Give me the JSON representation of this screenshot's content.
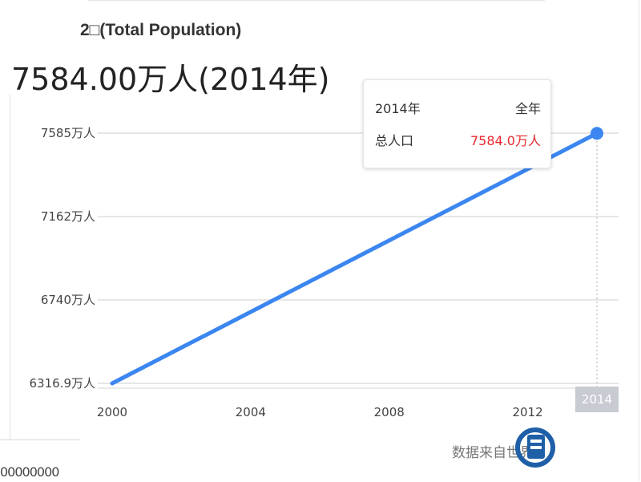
{
  "header": {
    "title": "2□(Total Population)",
    "headline": "7584.00万人(2014年)"
  },
  "tooltip": {
    "year": "2014年",
    "period": "全年",
    "metric": "总人口",
    "value": "7584.0万人"
  },
  "footer": {
    "source": "数据来自世界",
    "partial_text": "00000000"
  },
  "colors": {
    "line": "#3b86f0",
    "grid": "#e6e6e6",
    "highlight_tick_bg": "#c8cbd2",
    "tooltip_value": "#e8262b"
  },
  "chart_data": {
    "type": "line",
    "title": "",
    "xlabel": "",
    "ylabel": "",
    "x": [
      2000,
      2014
    ],
    "series": [
      {
        "values": [
          6316.9,
          7584.0
        ]
      }
    ],
    "xlim": [
      2000,
      2014
    ],
    "ylim": [
      6316.9,
      7585
    ],
    "x_ticks": [
      2000,
      2004,
      2008,
      2012,
      2014
    ],
    "x_tick_labels": [
      "2000",
      "2004",
      "2008",
      "2012",
      "2014"
    ],
    "highlighted_x": 2014,
    "y_ticks": [
      6316.9,
      6740,
      7162,
      7585
    ],
    "y_tick_labels": [
      "6316.9万人",
      "6740万人",
      "7162万人",
      "7585万人"
    ],
    "grid": true,
    "legend": "none"
  }
}
